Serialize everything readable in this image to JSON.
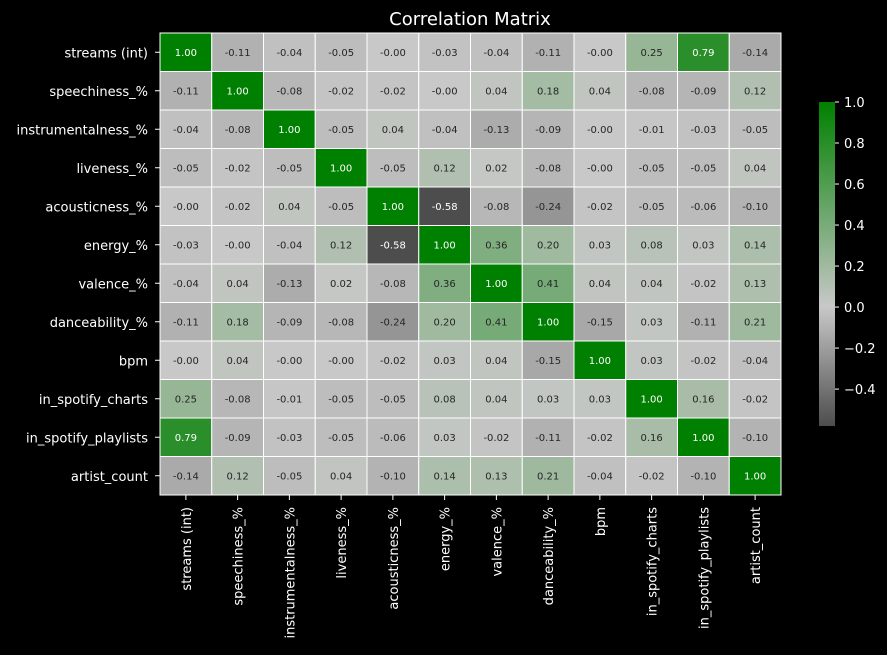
{
  "chart_data": {
    "type": "heatmap",
    "title": "Correlation Matrix",
    "labels": [
      "streams (int)",
      "speechiness_%",
      "instrumentalness_%",
      "liveness_%",
      "acousticness_%",
      "energy_%",
      "valence_%",
      "danceability_%",
      "bpm",
      "in_spotify_charts",
      "in_spotify_playlists",
      "artist_count"
    ],
    "values": [
      [
        1.0,
        -0.11,
        -0.04,
        -0.05,
        -0.0,
        -0.03,
        -0.04,
        -0.11,
        -0.0,
        0.25,
        0.79,
        -0.14
      ],
      [
        -0.11,
        1.0,
        -0.08,
        -0.02,
        -0.02,
        -0.0,
        0.04,
        0.18,
        0.04,
        -0.08,
        -0.09,
        0.12
      ],
      [
        -0.04,
        -0.08,
        1.0,
        -0.05,
        0.04,
        -0.04,
        -0.13,
        -0.09,
        -0.0,
        -0.01,
        -0.03,
        -0.05
      ],
      [
        -0.05,
        -0.02,
        -0.05,
        1.0,
        -0.05,
        0.12,
        0.02,
        -0.08,
        -0.0,
        -0.05,
        -0.05,
        0.04
      ],
      [
        -0.0,
        -0.02,
        0.04,
        -0.05,
        1.0,
        -0.58,
        -0.08,
        -0.24,
        -0.02,
        -0.05,
        -0.06,
        -0.1
      ],
      [
        -0.03,
        -0.0,
        -0.04,
        0.12,
        -0.58,
        1.0,
        0.36,
        0.2,
        0.03,
        0.08,
        0.03,
        0.14
      ],
      [
        -0.04,
        0.04,
        -0.13,
        0.02,
        -0.08,
        0.36,
        1.0,
        0.41,
        0.04,
        0.04,
        -0.02,
        0.13
      ],
      [
        -0.11,
        0.18,
        -0.09,
        -0.08,
        -0.24,
        0.2,
        0.41,
        1.0,
        -0.15,
        0.03,
        -0.11,
        0.21
      ],
      [
        -0.0,
        0.04,
        -0.0,
        -0.0,
        -0.02,
        0.03,
        0.04,
        -0.15,
        1.0,
        0.03,
        -0.02,
        -0.04
      ],
      [
        0.25,
        -0.08,
        -0.01,
        -0.05,
        -0.05,
        0.08,
        0.04,
        0.03,
        0.03,
        1.0,
        0.16,
        -0.02
      ],
      [
        0.79,
        -0.09,
        -0.03,
        -0.05,
        -0.06,
        0.03,
        -0.02,
        -0.11,
        -0.02,
        0.16,
        1.0,
        -0.1
      ],
      [
        -0.14,
        0.12,
        -0.05,
        0.04,
        -0.1,
        0.14,
        0.13,
        0.21,
        -0.04,
        -0.02,
        -0.1,
        1.0
      ]
    ],
    "value_format": "0.00",
    "colorbar": {
      "min": -0.58,
      "max": 1.0,
      "ticks": [
        1.0,
        0.8,
        0.6,
        0.4,
        0.2,
        0.0,
        -0.2,
        -0.4
      ],
      "tick_labels": [
        "1.0",
        "0.8",
        "0.6",
        "0.4",
        "0.2",
        "0.0",
        "−0.2",
        "−0.4"
      ]
    },
    "colors": {
      "low": "#4d4d4d",
      "mid": "#c8c8c8",
      "high": "#008000",
      "background": "#000000",
      "text": "#ffffff",
      "cell_border": "#ffffff"
    }
  }
}
